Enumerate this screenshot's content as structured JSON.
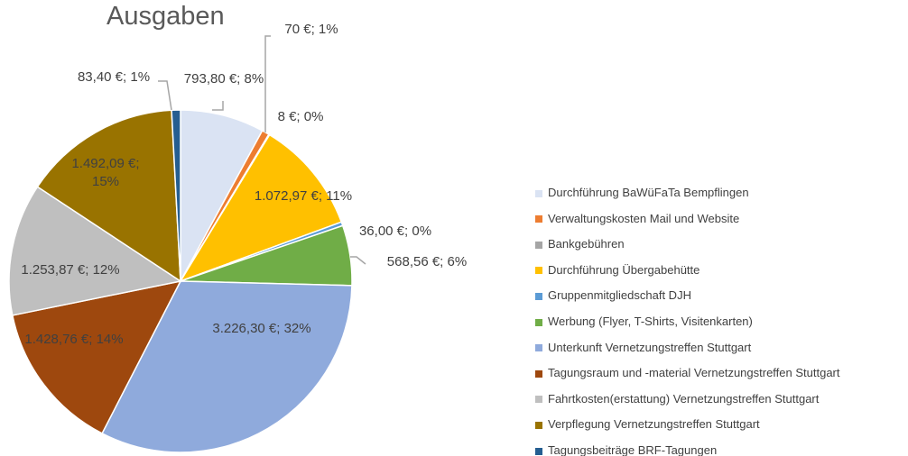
{
  "chart_data": {
    "type": "pie",
    "title": "Ausgaben",
    "categories": [
      "Durchführung BaWüFaTa Bempflingen",
      "Verwaltungskosten Mail und Website",
      "Bankgebühren",
      "Durchführung Übergabehütte",
      "Gruppenmitgliedschaft DJH",
      "Werbung (Flyer, T-Shirts, Visitenkarten)",
      "Unterkunft Vernetzungstreffen Stuttgart",
      "Tagungsraum und -material Vernetzungstreffen Stuttgart",
      "Fahrtkosten(erstattung) Vernetzungstreffen Stuttgart",
      "Verpflegung Vernetzungstreffen Stuttgart",
      "Tagungsbeiträge BRF-Tagungen"
    ],
    "values": [
      793.8,
      70,
      8,
      1072.97,
      36.0,
      568.56,
      3226.3,
      1428.76,
      1253.87,
      1492.09,
      83.4
    ],
    "value_labels": [
      "793,80 €; 8%",
      "70 €; 1%",
      "8 €; 0%",
      "1.072,97 €; 11%",
      "36,00 €; 0%",
      "568,56 €; 6%",
      "3.226,30 €; 32%",
      "1.428,76 €; 14%",
      "1.253,87 €; 12%",
      "1.492,09 €; 15%",
      "83,40 €; 1%"
    ],
    "colors": [
      "#dae3f3",
      "#ed7d31",
      "#a5a5a5",
      "#ffc000",
      "#5b9bd5",
      "#70ad47",
      "#8faadc",
      "#9e480e",
      "#bfbfbf",
      "#997300",
      "#255e91"
    ],
    "legend": "right"
  }
}
